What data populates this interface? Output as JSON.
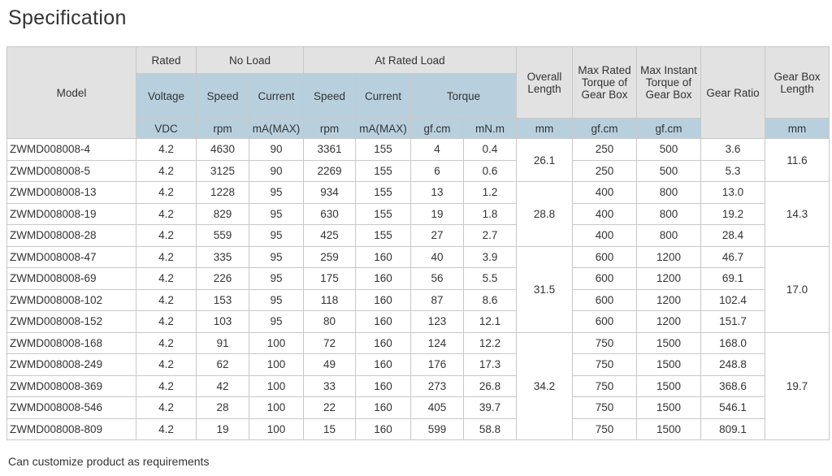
{
  "title": "Specification",
  "headers": {
    "model": "Model",
    "rated": "Rated",
    "no_load": "No Load",
    "at_rated_load": "At Rated Load",
    "overall_length": "Overall Length",
    "max_rated": "Max Rated Torque of Gear Box",
    "max_instant": "Max Instant Torque of Gear Box",
    "gear_ratio": "Gear Ratio",
    "gear_box_length": "Gear Box Length",
    "voltage": "Voltage",
    "speed": "Speed",
    "current": "Current",
    "speed2": "Speed",
    "current2": "Current",
    "torque": "Torque",
    "units": [
      "VDC",
      "rpm",
      "mA(MAX)",
      "rpm",
      "mA(MAX)",
      "gf.cm",
      "mN.m",
      "mm",
      "gf.cm",
      "gf.cm",
      "mm"
    ]
  },
  "rows": [
    [
      "ZWMD008008-4",
      "4.2",
      "4630",
      "90",
      "3361",
      "155",
      "4",
      "0.4",
      "250",
      "500",
      "3.6"
    ],
    [
      "ZWMD008008-5",
      "4.2",
      "3125",
      "90",
      "2269",
      "155",
      "6",
      "0.6",
      "250",
      "500",
      "5.3"
    ],
    [
      "ZWMD008008-13",
      "4.2",
      "1228",
      "95",
      "934",
      "155",
      "13",
      "1.2",
      "400",
      "800",
      "13.0"
    ],
    [
      "ZWMD008008-19",
      "4.2",
      "829",
      "95",
      "630",
      "155",
      "19",
      "1.8",
      "400",
      "800",
      "19.2"
    ],
    [
      "ZWMD008008-28",
      "4.2",
      "559",
      "95",
      "425",
      "155",
      "27",
      "2.7",
      "400",
      "800",
      "28.4"
    ],
    [
      "ZWMD008008-47",
      "4.2",
      "335",
      "95",
      "259",
      "160",
      "40",
      "3.9",
      "600",
      "1200",
      "46.7"
    ],
    [
      "ZWMD008008-69",
      "4.2",
      "226",
      "95",
      "175",
      "160",
      "56",
      "5.5",
      "600",
      "1200",
      "69.1"
    ],
    [
      "ZWMD008008-102",
      "4.2",
      "153",
      "95",
      "118",
      "160",
      "87",
      "8.6",
      "600",
      "1200",
      "102.4"
    ],
    [
      "ZWMD008008-152",
      "4.2",
      "103",
      "95",
      "80",
      "160",
      "123",
      "12.1",
      "600",
      "1200",
      "151.7"
    ],
    [
      "ZWMD008008-168",
      "4.2",
      "91",
      "100",
      "72",
      "160",
      "124",
      "12.2",
      "750",
      "1500",
      "168.0"
    ],
    [
      "ZWMD008008-249",
      "4.2",
      "62",
      "100",
      "49",
      "160",
      "176",
      "17.3",
      "750",
      "1500",
      "248.8"
    ],
    [
      "ZWMD008008-369",
      "4.2",
      "42",
      "100",
      "33",
      "160",
      "273",
      "26.8",
      "750",
      "1500",
      "368.6"
    ],
    [
      "ZWMD008008-546",
      "4.2",
      "28",
      "100",
      "22",
      "160",
      "405",
      "39.7",
      "750",
      "1500",
      "546.1"
    ],
    [
      "ZWMD008008-809",
      "4.2",
      "19",
      "100",
      "15",
      "160",
      "599",
      "58.8",
      "750",
      "1500",
      "809.1"
    ]
  ],
  "groups": [
    {
      "rows": 2,
      "overall_length": "26.1",
      "gear_box_length": "11.6"
    },
    {
      "rows": 3,
      "overall_length": "28.8",
      "gear_box_length": "14.3"
    },
    {
      "rows": 4,
      "overall_length": "31.5",
      "gear_box_length": "17.0"
    },
    {
      "rows": 5,
      "overall_length": "34.2",
      "gear_box_length": "19.7"
    }
  ],
  "footer": "Can customize product as requirements"
}
